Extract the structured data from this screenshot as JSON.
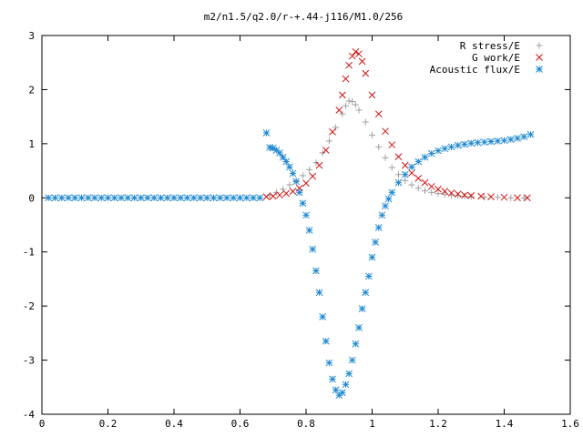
{
  "chart_data": {
    "type": "scatter",
    "title": "m2/n1.5/q2.0/r-+.44-j116/M1.0/256",
    "xlabel": "",
    "ylabel": "",
    "xlim": [
      0,
      1.6
    ],
    "ylim": [
      -4,
      3
    ],
    "xticks": [
      "0",
      "0.2",
      "0.4",
      "0.6",
      "0.8",
      "1",
      "1.2",
      "1.4",
      "1.6"
    ],
    "yticks": [
      "3",
      "2",
      "1",
      "0",
      "-1",
      "-2",
      "-3",
      "-4"
    ],
    "legend_position": "top-right",
    "grid": false,
    "series": [
      {
        "name": "R stress/E",
        "marker": "plus",
        "color": "#a0a0a0",
        "points": [
          [
            0.69,
            0.05
          ],
          [
            0.71,
            0.1
          ],
          [
            0.73,
            0.16
          ],
          [
            0.75,
            0.24
          ],
          [
            0.77,
            0.32
          ],
          [
            0.79,
            0.41
          ],
          [
            0.81,
            0.52
          ],
          [
            0.83,
            0.65
          ],
          [
            0.85,
            0.83
          ],
          [
            0.87,
            1.05
          ],
          [
            0.89,
            1.3
          ],
          [
            0.91,
            1.55
          ],
          [
            0.92,
            1.7
          ],
          [
            0.93,
            1.79
          ],
          [
            0.94,
            1.78
          ],
          [
            0.95,
            1.72
          ],
          [
            0.96,
            1.62
          ],
          [
            0.98,
            1.4
          ],
          [
            1.0,
            1.16
          ],
          [
            1.02,
            0.94
          ],
          [
            1.04,
            0.74
          ],
          [
            1.06,
            0.56
          ],
          [
            1.08,
            0.43
          ],
          [
            1.1,
            0.32
          ],
          [
            1.12,
            0.24
          ],
          [
            1.14,
            0.18
          ],
          [
            1.16,
            0.13
          ],
          [
            1.18,
            0.1
          ],
          [
            1.2,
            0.08
          ],
          [
            1.22,
            0.06
          ],
          [
            1.24,
            0.05
          ],
          [
            1.26,
            0.04
          ],
          [
            1.28,
            0.03
          ],
          [
            1.3,
            0.02
          ],
          [
            1.34,
            0.01
          ],
          [
            1.38,
            0.01
          ],
          [
            1.42,
            0
          ],
          [
            1.46,
            0
          ]
        ]
      },
      {
        "name": "G work/E",
        "marker": "cross",
        "color": "#d01010",
        "points": [
          [
            0.68,
            0.02
          ],
          [
            0.7,
            0.03
          ],
          [
            0.72,
            0.05
          ],
          [
            0.74,
            0.08
          ],
          [
            0.76,
            0.12
          ],
          [
            0.78,
            0.18
          ],
          [
            0.8,
            0.27
          ],
          [
            0.82,
            0.4
          ],
          [
            0.84,
            0.6
          ],
          [
            0.86,
            0.88
          ],
          [
            0.88,
            1.22
          ],
          [
            0.9,
            1.62
          ],
          [
            0.91,
            1.9
          ],
          [
            0.92,
            2.2
          ],
          [
            0.93,
            2.45
          ],
          [
            0.94,
            2.62
          ],
          [
            0.95,
            2.7
          ],
          [
            0.96,
            2.66
          ],
          [
            0.97,
            2.52
          ],
          [
            0.98,
            2.3
          ],
          [
            1.0,
            1.9
          ],
          [
            1.02,
            1.55
          ],
          [
            1.04,
            1.23
          ],
          [
            1.06,
            0.98
          ],
          [
            1.08,
            0.76
          ],
          [
            1.1,
            0.6
          ],
          [
            1.12,
            0.46
          ],
          [
            1.14,
            0.36
          ],
          [
            1.16,
            0.28
          ],
          [
            1.18,
            0.21
          ],
          [
            1.2,
            0.16
          ],
          [
            1.22,
            0.12
          ],
          [
            1.24,
            0.09
          ],
          [
            1.26,
            0.07
          ],
          [
            1.28,
            0.05
          ],
          [
            1.3,
            0.04
          ],
          [
            1.33,
            0.03
          ],
          [
            1.36,
            0.02
          ],
          [
            1.4,
            0.01
          ],
          [
            1.44,
            0
          ],
          [
            1.47,
            0
          ]
        ]
      },
      {
        "name": "Acoustic flux/E",
        "marker": "star",
        "color": "#1e88d0",
        "points": [
          [
            0.68,
            1.2
          ],
          [
            0.69,
            0.93
          ],
          [
            0.7,
            0.92
          ],
          [
            0.71,
            0.88
          ],
          [
            0.72,
            0.83
          ],
          [
            0.73,
            0.75
          ],
          [
            0.74,
            0.67
          ],
          [
            0.75,
            0.57
          ],
          [
            0.76,
            0.45
          ],
          [
            0.77,
            0.3
          ],
          [
            0.78,
            0.1
          ],
          [
            0.79,
            -0.1
          ],
          [
            0.8,
            -0.32
          ],
          [
            0.81,
            -0.6
          ],
          [
            0.82,
            -0.95
          ],
          [
            0.83,
            -1.35
          ],
          [
            0.84,
            -1.75
          ],
          [
            0.85,
            -2.2
          ],
          [
            0.86,
            -2.65
          ],
          [
            0.87,
            -3.05
          ],
          [
            0.88,
            -3.35
          ],
          [
            0.89,
            -3.55
          ],
          [
            0.9,
            -3.65
          ],
          [
            0.91,
            -3.6
          ],
          [
            0.92,
            -3.45
          ],
          [
            0.93,
            -3.25
          ],
          [
            0.94,
            -3.0
          ],
          [
            0.95,
            -2.7
          ],
          [
            0.96,
            -2.4
          ],
          [
            0.97,
            -2.05
          ],
          [
            0.98,
            -1.75
          ],
          [
            0.99,
            -1.45
          ],
          [
            1.0,
            -1.1
          ],
          [
            1.01,
            -0.82
          ],
          [
            1.02,
            -0.55
          ],
          [
            1.03,
            -0.32
          ],
          [
            1.04,
            -0.15
          ],
          [
            1.05,
            -0.02
          ],
          [
            1.06,
            0.1
          ],
          [
            1.08,
            0.28
          ],
          [
            1.1,
            0.43
          ],
          [
            1.12,
            0.57
          ],
          [
            1.14,
            0.67
          ],
          [
            1.16,
            0.75
          ],
          [
            1.18,
            0.82
          ],
          [
            1.2,
            0.87
          ],
          [
            1.22,
            0.91
          ],
          [
            1.24,
            0.94
          ],
          [
            1.26,
            0.97
          ],
          [
            1.28,
            0.99
          ],
          [
            1.3,
            1.01
          ],
          [
            1.32,
            1.02
          ],
          [
            1.34,
            1.03
          ],
          [
            1.36,
            1.04
          ],
          [
            1.38,
            1.05
          ],
          [
            1.4,
            1.06
          ],
          [
            1.42,
            1.08
          ],
          [
            1.44,
            1.1
          ],
          [
            1.46,
            1.13
          ],
          [
            1.48,
            1.17
          ],
          [
            0.02,
            0
          ],
          [
            0.04,
            0
          ],
          [
            0.06,
            0
          ],
          [
            0.08,
            0
          ],
          [
            0.1,
            0
          ],
          [
            0.12,
            0
          ],
          [
            0.14,
            0
          ],
          [
            0.16,
            0
          ],
          [
            0.18,
            0
          ],
          [
            0.2,
            0
          ],
          [
            0.22,
            0
          ],
          [
            0.24,
            0
          ],
          [
            0.26,
            0
          ],
          [
            0.28,
            0
          ],
          [
            0.3,
            0
          ],
          [
            0.32,
            0
          ],
          [
            0.34,
            0
          ],
          [
            0.36,
            0
          ],
          [
            0.38,
            0
          ],
          [
            0.4,
            0
          ],
          [
            0.42,
            0
          ],
          [
            0.44,
            0
          ],
          [
            0.46,
            0
          ],
          [
            0.48,
            0
          ],
          [
            0.5,
            0
          ],
          [
            0.52,
            0
          ],
          [
            0.54,
            0
          ],
          [
            0.56,
            0
          ],
          [
            0.58,
            0
          ],
          [
            0.6,
            0
          ],
          [
            0.62,
            0
          ],
          [
            0.64,
            0
          ],
          [
            0.66,
            0
          ]
        ]
      }
    ]
  }
}
